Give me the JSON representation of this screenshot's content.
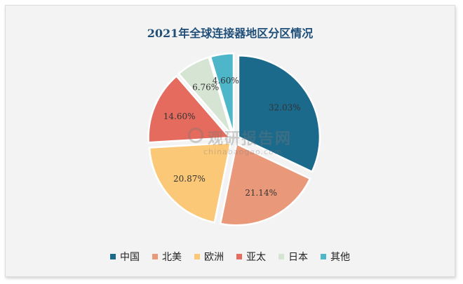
{
  "chart_data": {
    "type": "pie",
    "title": "2021年全球连接器地区分区情况",
    "categories": [
      "中国",
      "北美",
      "欧洲",
      "亚太",
      "日本",
      "其他"
    ],
    "values": [
      32.03,
      21.14,
      20.87,
      14.6,
      6.76,
      4.6
    ],
    "labels": [
      "32.03%",
      "21.14%",
      "20.87%",
      "14.60%",
      "6.76%",
      "4.60%"
    ],
    "colors": [
      "#1b6a8c",
      "#e9997a",
      "#fbc878",
      "#e46b5d",
      "#d5e4d3",
      "#4db7c9"
    ],
    "legend_position": "bottom"
  },
  "watermark": {
    "cn": "观研报告网",
    "en": "chinabaogao.com"
  }
}
